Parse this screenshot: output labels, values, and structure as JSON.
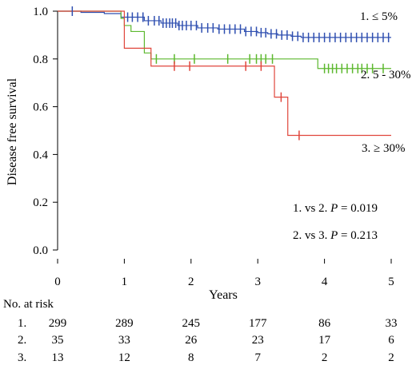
{
  "chart_data": {
    "type": "line",
    "title": "",
    "xlabel": "Years",
    "ylabel": "Disease free survival",
    "xlim": [
      0,
      5
    ],
    "ylim": [
      0,
      1.0
    ],
    "xticks": [
      "0",
      "1",
      "2",
      "3",
      "4",
      "5"
    ],
    "yticks": [
      "0.0",
      "0.2",
      "0.4",
      "0.6",
      "0.8",
      "1.0"
    ],
    "grid": false,
    "series": [
      {
        "name": "1. ≤ 5%",
        "color": "#2f4fb0",
        "steps": [
          [
            0,
            1.0
          ],
          [
            0.35,
            1.0
          ],
          [
            0.35,
            0.995
          ],
          [
            0.7,
            0.995
          ],
          [
            0.7,
            0.99
          ],
          [
            0.95,
            0.99
          ],
          [
            0.95,
            0.975
          ],
          [
            1.3,
            0.975
          ],
          [
            1.3,
            0.96
          ],
          [
            1.55,
            0.96
          ],
          [
            1.55,
            0.95
          ],
          [
            1.8,
            0.95
          ],
          [
            1.8,
            0.94
          ],
          [
            2.1,
            0.94
          ],
          [
            2.1,
            0.93
          ],
          [
            2.4,
            0.93
          ],
          [
            2.4,
            0.925
          ],
          [
            2.8,
            0.925
          ],
          [
            2.8,
            0.915
          ],
          [
            3.0,
            0.915
          ],
          [
            3.0,
            0.91
          ],
          [
            3.15,
            0.91
          ],
          [
            3.15,
            0.905
          ],
          [
            3.3,
            0.905
          ],
          [
            3.3,
            0.9
          ],
          [
            3.5,
            0.9
          ],
          [
            3.5,
            0.895
          ],
          [
            3.65,
            0.895
          ],
          [
            3.65,
            0.89
          ],
          [
            5.0,
            0.89
          ]
        ],
        "censor_x": [
          0.22,
          1.05,
          1.12,
          1.2,
          1.28,
          1.36,
          1.45,
          1.52,
          1.58,
          1.63,
          1.68,
          1.72,
          1.77,
          1.82,
          1.87,
          1.93,
          2.0,
          2.08,
          2.16,
          2.25,
          2.33,
          2.42,
          2.5,
          2.58,
          2.66,
          2.74,
          2.82,
          2.9,
          2.98,
          3.05,
          3.12,
          3.2,
          3.28,
          3.36,
          3.44,
          3.52,
          3.6,
          3.68,
          3.76,
          3.84,
          3.92,
          4.0,
          4.08,
          4.16,
          4.24,
          4.32,
          4.4,
          4.48,
          4.56,
          4.64,
          4.72,
          4.8,
          4.88,
          4.96
        ]
      },
      {
        "name": "2. 5 - 30%",
        "color": "#5cb82e",
        "steps": [
          [
            0,
            1.0
          ],
          [
            0.95,
            1.0
          ],
          [
            0.95,
            0.97
          ],
          [
            1.0,
            0.97
          ],
          [
            1.0,
            0.94
          ],
          [
            1.1,
            0.94
          ],
          [
            1.1,
            0.915
          ],
          [
            1.3,
            0.915
          ],
          [
            1.3,
            0.825
          ],
          [
            1.4,
            0.825
          ],
          [
            1.4,
            0.8
          ],
          [
            3.9,
            0.8
          ],
          [
            3.9,
            0.76
          ],
          [
            5.0,
            0.76
          ]
        ],
        "censor_x": [
          1.48,
          1.75,
          2.05,
          2.55,
          2.88,
          2.98,
          3.05,
          3.12,
          3.22,
          4.0,
          4.06,
          4.12,
          4.18,
          4.26,
          4.34,
          4.42,
          4.5,
          4.56,
          4.64,
          4.72,
          4.88
        ]
      },
      {
        "name": "3. ≥ 30%",
        "color": "#e0463c",
        "steps": [
          [
            0,
            1.0
          ],
          [
            1.0,
            1.0
          ],
          [
            1.0,
            0.845
          ],
          [
            1.4,
            0.845
          ],
          [
            1.4,
            0.77
          ],
          [
            3.25,
            0.77
          ],
          [
            3.25,
            0.64
          ],
          [
            3.45,
            0.64
          ],
          [
            3.45,
            0.48
          ],
          [
            5.0,
            0.48
          ]
        ],
        "censor_x": [
          1.75,
          1.98,
          2.82,
          3.05,
          3.35,
          3.62
        ]
      }
    ],
    "annotations": [
      "1. vs 2. P = 0.019",
      "2. vs 3. P = 0.213"
    ],
    "legend_placement": "right, next to each curve",
    "risk_table": {
      "title": "No. at risk",
      "times": [
        0,
        1,
        2,
        3,
        4,
        5
      ],
      "rows": [
        {
          "label": "1.",
          "values": [
            "299",
            "289",
            "245",
            "177",
            "86",
            "33"
          ]
        },
        {
          "label": "2.",
          "values": [
            "35",
            "33",
            "26",
            "23",
            "17",
            "6"
          ]
        },
        {
          "label": "3.",
          "values": [
            "13",
            "12",
            "8",
            "7",
            "2",
            "2"
          ]
        }
      ]
    }
  },
  "annotation_parts": [
    {
      "prefix": "1. vs 2. ",
      "p": "P",
      "rest": " = 0.019"
    },
    {
      "prefix": "2. vs 3. ",
      "p": "P",
      "rest": " = 0.213"
    }
  ]
}
